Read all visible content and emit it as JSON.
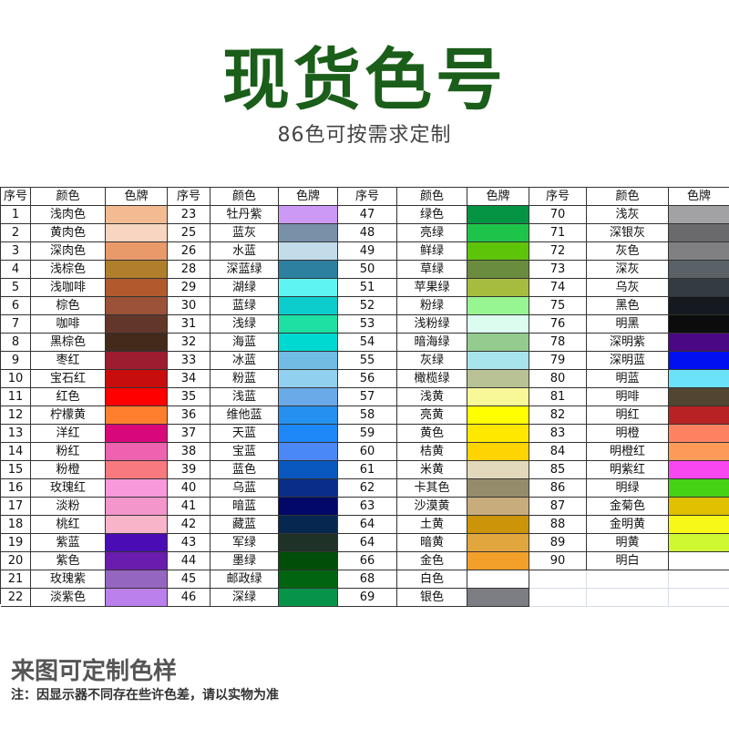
{
  "title": "现货色号",
  "title_color": "#1a5e1a",
  "subtitle": "86色可按需求定制",
  "headers": [
    "序号",
    "颜色",
    "色牌"
  ],
  "groups": [
    [
      [
        "1",
        "浅肉色",
        "#f2bb92"
      ],
      [
        "2",
        "黄肉色",
        "#f7d5c0"
      ],
      [
        "3",
        "深肉色",
        "#e89a6a"
      ],
      [
        "4",
        "浅棕色",
        "#b07f2b"
      ],
      [
        "5",
        "浅咖啡",
        "#b25a2e"
      ],
      [
        "6",
        "棕色",
        "#9b5239"
      ],
      [
        "7",
        "咖啡",
        "#63362a"
      ],
      [
        "8",
        "黑棕色",
        "#432a1a"
      ],
      [
        "9",
        "枣红",
        "#9e1c2f"
      ],
      [
        "10",
        "宝石红",
        "#c80d0d"
      ],
      [
        "11",
        "红色",
        "#ff0000"
      ],
      [
        "12",
        "柠檬黄",
        "#ff7f2e"
      ],
      [
        "13",
        "洋红",
        "#d9087a"
      ],
      [
        "14",
        "粉红",
        "#ef62b0"
      ],
      [
        "15",
        "粉橙",
        "#f8797f"
      ],
      [
        "16",
        "玫瑰红",
        "#f899dc"
      ],
      [
        "17",
        "淡粉",
        "#f296cc"
      ],
      [
        "18",
        "桃红",
        "#f8b4c8"
      ],
      [
        "19",
        "紫蓝",
        "#4a0cb4"
      ],
      [
        "20",
        "紫色",
        "#6a1cae"
      ],
      [
        "21",
        "玫瑰紫",
        "#9566c0"
      ],
      [
        "22",
        "淡紫色",
        "#bb80ec"
      ]
    ],
    [
      [
        "23",
        "牡丹紫",
        "#cc99f4"
      ],
      [
        "25",
        "蓝灰",
        "#7890a8"
      ],
      [
        "26",
        "水蓝",
        "#c2dcea"
      ],
      [
        "28",
        "深蓝绿",
        "#2e80a0"
      ],
      [
        "29",
        "湖绿",
        "#5ef4f2"
      ],
      [
        "30",
        "蓝绿",
        "#0ccdcc"
      ],
      [
        "31",
        "浅绿",
        "#1ee0a2"
      ],
      [
        "32",
        "海蓝",
        "#00d8d2"
      ],
      [
        "33",
        "冰蓝",
        "#70bce2"
      ],
      [
        "34",
        "粉蓝",
        "#92d0f0"
      ],
      [
        "35",
        "浅蓝",
        "#6aaae8"
      ],
      [
        "36",
        "维他蓝",
        "#2690f0"
      ],
      [
        "37",
        "天蓝",
        "#1e88f8"
      ],
      [
        "38",
        "宝蓝",
        "#4a88f8"
      ],
      [
        "39",
        "蓝色",
        "#0858c0"
      ],
      [
        "40",
        "乌蓝",
        "#0a2e88"
      ],
      [
        "41",
        "暗蓝",
        "#020868"
      ],
      [
        "42",
        "藏蓝",
        "#062850"
      ],
      [
        "43",
        "军绿",
        "#1e3228"
      ],
      [
        "44",
        "墨绿",
        "#004e08"
      ],
      [
        "45",
        "邮政绿",
        "#006410"
      ],
      [
        "46",
        "深绿",
        "#089448"
      ]
    ],
    [
      [
        "47",
        "绿色",
        "#059444"
      ],
      [
        "48",
        "亮绿",
        "#1ec44a"
      ],
      [
        "49",
        "鲜绿",
        "#5ec40a"
      ],
      [
        "50",
        "草绿",
        "#6a8c3e"
      ],
      [
        "51",
        "苹果绿",
        "#a6bc3e"
      ],
      [
        "52",
        "粉绿",
        "#98f692"
      ],
      [
        "53",
        "浅粉绿",
        "#dcfcf0"
      ],
      [
        "54",
        "暗海绿",
        "#94cc90"
      ],
      [
        "55",
        "灰绿",
        "#a8e4ec"
      ],
      [
        "56",
        "橄榄绿",
        "#b8c294"
      ],
      [
        "57",
        "浅黄",
        "#f8f898"
      ],
      [
        "58",
        "亮黄",
        "#ffff00"
      ],
      [
        "59",
        "黄色",
        "#ffe800"
      ],
      [
        "60",
        "桔黄",
        "#ffd400"
      ],
      [
        "61",
        "米黄",
        "#e2d8bc"
      ],
      [
        "62",
        "卡其色",
        "#958c6c"
      ],
      [
        "63",
        "沙漠黄",
        "#c8ac7c"
      ],
      [
        "64",
        "土黄",
        "#cc9408"
      ],
      [
        "64",
        "暗黄",
        "#e2a63e"
      ],
      [
        "66",
        "金色",
        "#f2a02a"
      ],
      [
        "68",
        "白色",
        "#ffffff"
      ],
      [
        "69",
        "银色",
        "#7c7e84"
      ]
    ],
    [
      [
        "70",
        "浅灰",
        "#a2a2a4"
      ],
      [
        "71",
        "深银灰",
        "#6a6a6c"
      ],
      [
        "72",
        "灰色",
        "#808082"
      ],
      [
        "73",
        "深灰",
        "#5a6268"
      ],
      [
        "74",
        "乌灰",
        "#343c42"
      ],
      [
        "75",
        "黑色",
        "#141a20"
      ],
      [
        "76",
        "明黑",
        "#0c0c0c"
      ],
      [
        "78",
        "深明紫",
        "#4a0884"
      ],
      [
        "79",
        "深明蓝",
        "#0010f0"
      ],
      [
        "80",
        "明蓝",
        "#6ce2f8"
      ],
      [
        "81",
        "明啡",
        "#524632"
      ],
      [
        "82",
        "明红",
        "#b82224"
      ],
      [
        "83",
        "明橙",
        "#fe8262"
      ],
      [
        "84",
        "明橙红",
        "#fe9a58"
      ],
      [
        "85",
        "明紫红",
        "#f846f0"
      ],
      [
        "86",
        "明绿",
        "#46d214"
      ],
      [
        "87",
        "金菊色",
        "#e0c000"
      ],
      [
        "88",
        "金明黄",
        "#f8f818"
      ],
      [
        "89",
        "明黄",
        "#d0f832"
      ],
      [
        "90",
        "明白",
        "#ffffff"
      ]
    ]
  ],
  "footer_title": "来图可定制色样",
  "footer_note": "注：因显示器不同存在些许色差，请以实物为准"
}
